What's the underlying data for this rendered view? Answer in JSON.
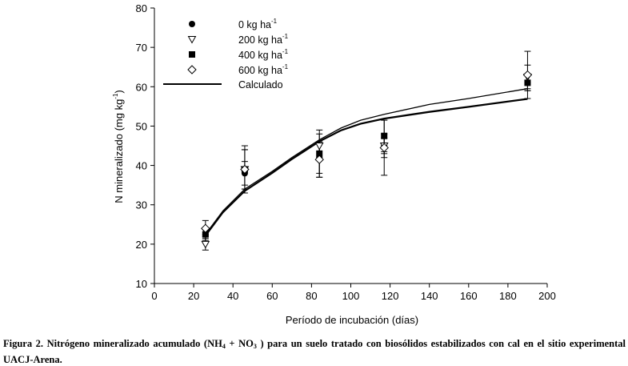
{
  "chart_data": {
    "type": "scatter",
    "title": "",
    "xlabel": "Período de incubación (días)",
    "ylabel": "N mineralizado (mg kg-1)",
    "ylabel_parts": {
      "pre": "N mineralizado (mg kg",
      "sup": "-1",
      "post": ")"
    },
    "xlim": [
      0,
      200
    ],
    "ylim": [
      10,
      80
    ],
    "xticks": [
      0,
      20,
      40,
      60,
      80,
      100,
      120,
      140,
      160,
      180,
      200
    ],
    "yticks": [
      10,
      20,
      30,
      40,
      50,
      60,
      70,
      80
    ],
    "grid": false,
    "legend_position": "top-left",
    "legend": {
      "series": [
        {
          "name": "0 kg ha-1",
          "base": "0 kg ha",
          "sup": "-1",
          "marker": "filled-circle"
        },
        {
          "name": "200 kg ha-1",
          "base": "200 kg ha",
          "sup": "-1",
          "marker": "open-triangle-down"
        },
        {
          "name": "400 kg ha-1",
          "base": "400 kg ha",
          "sup": "-1",
          "marker": "filled-square"
        },
        {
          "name": "600 kg ha-1",
          "base": "600 kg ha",
          "sup": "-1",
          "marker": "open-diamond"
        }
      ],
      "line_label": "Calculado"
    },
    "series": [
      {
        "name": "0 kg ha-1",
        "marker": "filled-circle",
        "x": [
          26,
          46,
          84,
          117,
          190
        ],
        "y": [
          22.5,
          38,
          42,
          45,
          61
        ],
        "error": [
          1.5,
          3,
          4,
          3,
          2
        ]
      },
      {
        "name": "200 kg ha-1",
        "marker": "open-triangle-down",
        "x": [
          26,
          46,
          84,
          117,
          190
        ],
        "y": [
          20,
          39,
          45,
          45,
          62.5
        ],
        "error": [
          1.5,
          6,
          3,
          2,
          3
        ]
      },
      {
        "name": "400 kg ha-1",
        "marker": "filled-square",
        "x": [
          26,
          46,
          84,
          117,
          190
        ],
        "y": [
          22.5,
          39,
          43,
          47.5,
          61
        ],
        "error": [
          1.5,
          5,
          6,
          4,
          2
        ]
      },
      {
        "name": "600 kg ha-1",
        "marker": "open-diamond",
        "x": [
          26,
          46,
          84,
          117,
          190
        ],
        "y": [
          24,
          39,
          41.5,
          44.5,
          63
        ],
        "error": [
          2,
          5,
          4.5,
          7,
          6
        ]
      }
    ],
    "calculated_lines": [
      {
        "name": "Calculado",
        "x": [
          26,
          35,
          46,
          60,
          70,
          84,
          95,
          105,
          117,
          140,
          160,
          190
        ],
        "y": [
          22.5,
          28.5,
          34,
          38.5,
          42,
          46.5,
          49.5,
          51.5,
          53,
          55.5,
          57,
          59.5
        ]
      },
      {
        "name": "Calculado",
        "x": [
          26,
          35,
          46,
          60,
          70,
          84,
          95,
          105,
          117,
          140,
          160,
          190
        ],
        "y": [
          22.2,
          28.2,
          33.6,
          38.2,
          41.7,
          46.2,
          49,
          50.7,
          52,
          53.7,
          55,
          57
        ]
      },
      {
        "name": "Calculado",
        "x": [
          26,
          35,
          46,
          60,
          70,
          84,
          95,
          105,
          117,
          140,
          160,
          190
        ],
        "y": [
          22,
          28,
          33.4,
          38,
          41.5,
          46,
          48.8,
          50.5,
          51.8,
          53.5,
          54.8,
          56.8
        ]
      }
    ]
  },
  "caption": {
    "p1": "Figura 2. Nitrógeno mineralizado acumulado (NH",
    "s1": "4",
    "p2": " + NO",
    "s2": "3",
    "p3": " ) para un suelo tratado con biosólidos estabilizados con cal en el sitio experimental UACJ-Arena."
  }
}
